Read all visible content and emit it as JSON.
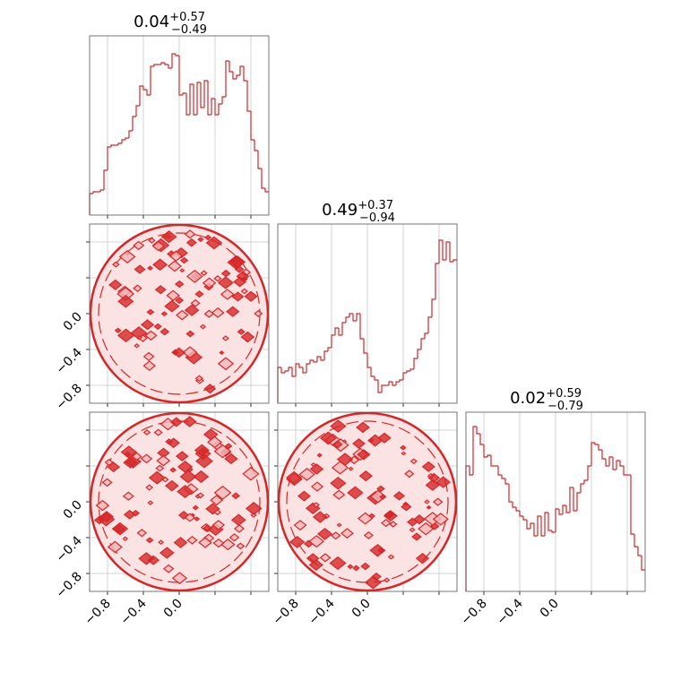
{
  "chart_data": [
    {
      "type": "histogram",
      "title": "0.04",
      "title_upper": "+0.57",
      "title_lower": "−0.49",
      "color": "#d62728",
      "bins": [
        -1,
        -0.96,
        -0.92,
        -0.88,
        -0.84,
        -0.8,
        -0.76,
        -0.72,
        -0.68,
        -0.64,
        -0.6,
        -0.56,
        -0.52,
        -0.48,
        -0.44,
        -0.4,
        -0.36,
        -0.32,
        -0.28,
        -0.24,
        -0.2,
        -0.16,
        -0.12,
        -0.08,
        -0.04,
        0,
        0.04,
        0.08,
        0.12,
        0.16,
        0.2,
        0.24,
        0.28,
        0.32,
        0.36,
        0.4,
        0.44,
        0.48,
        0.52,
        0.56,
        0.6,
        0.64,
        0.68,
        0.72,
        0.76,
        0.8,
        0.84,
        0.88,
        0.92,
        0.96,
        1
      ],
      "values": [
        0.12,
        0.13,
        0.13,
        0.14,
        0.25,
        0.38,
        0.39,
        0.39,
        0.4,
        0.42,
        0.43,
        0.47,
        0.55,
        0.61,
        0.72,
        0.7,
        0.67,
        0.83,
        0.84,
        0.84,
        0.85,
        0.84,
        0.82,
        0.9,
        0.89,
        0.67,
        0.68,
        0.56,
        0.73,
        0.56,
        0.74,
        0.6,
        0.75,
        0.56,
        0.65,
        0.56,
        0.62,
        0.66,
        0.86,
        0.8,
        0.76,
        0.78,
        0.83,
        0.75,
        0.58,
        0.42,
        0.36,
        0.26,
        0.15,
        0.13
      ],
      "xlim": [
        -1,
        1
      ],
      "ylim": [
        0,
        1
      ],
      "xticks": [
        -0.8,
        -0.4,
        0,
        0.4,
        0.8
      ],
      "grid": true
    },
    {
      "type": "contour",
      "color": "#d62728",
      "xlim": [
        -1,
        1
      ],
      "ylim": [
        -1,
        1
      ],
      "xticks": [
        -0.8,
        -0.4,
        0,
        0.4,
        0.8
      ],
      "yticks": [
        {
          "value": -0.8,
          "label": "−0.8"
        },
        {
          "value": -0.4,
          "label": "−0.4"
        },
        {
          "value": 0,
          "label": "0.0"
        },
        0.4,
        0.8
      ],
      "grid": true
    },
    {
      "type": "histogram",
      "title": "0.49",
      "title_upper": "+0.37",
      "title_lower": "−0.94",
      "color": "#d62728",
      "bins": [
        -1,
        -0.96,
        -0.92,
        -0.88,
        -0.84,
        -0.8,
        -0.76,
        -0.72,
        -0.68,
        -0.64,
        -0.6,
        -0.56,
        -0.52,
        -0.48,
        -0.44,
        -0.4,
        -0.36,
        -0.32,
        -0.28,
        -0.24,
        -0.2,
        -0.16,
        -0.12,
        -0.08,
        -0.04,
        0,
        0.04,
        0.08,
        0.12,
        0.16,
        0.2,
        0.24,
        0.28,
        0.32,
        0.36,
        0.4,
        0.44,
        0.48,
        0.52,
        0.56,
        0.6,
        0.64,
        0.68,
        0.72,
        0.76,
        0.8,
        0.84,
        0.88,
        0.92,
        0.96,
        1
      ],
      "values": [
        0.2,
        0.17,
        0.18,
        0.2,
        0.15,
        0.22,
        0.2,
        0.17,
        0.22,
        0.24,
        0.23,
        0.26,
        0.24,
        0.29,
        0.31,
        0.38,
        0.42,
        0.38,
        0.45,
        0.48,
        0.5,
        0.46,
        0.5,
        0.36,
        0.28,
        0.2,
        0.15,
        0.13,
        0.06,
        0.1,
        0.1,
        0.12,
        0.1,
        0.12,
        0.13,
        0.17,
        0.18,
        0.19,
        0.25,
        0.3,
        0.36,
        0.39,
        0.48,
        0.58,
        0.78,
        0.91,
        0.8,
        0.9,
        0.79,
        0.8
      ],
      "xlim": [
        -1,
        1
      ],
      "ylim": [
        0,
        1
      ],
      "xticks": [
        -0.8,
        -0.4,
        0,
        0.4,
        0.8
      ],
      "grid": true
    },
    {
      "type": "contour",
      "color": "#d62728",
      "xlim": [
        -1,
        1
      ],
      "ylim": [
        -1,
        1
      ],
      "xticks": [
        {
          "value": -0.8,
          "label": "−0.8"
        },
        {
          "value": -0.4,
          "label": "−0.4"
        },
        {
          "value": 0,
          "label": "0.0"
        },
        0.4,
        0.8
      ],
      "yticks": [
        {
          "value": -0.8,
          "label": "−0.8"
        },
        {
          "value": -0.4,
          "label": "−0.4"
        },
        {
          "value": 0,
          "label": "0.0"
        },
        0.4,
        0.8
      ],
      "grid": true
    },
    {
      "type": "contour",
      "color": "#d62728",
      "xlim": [
        -1,
        1
      ],
      "ylim": [
        -1,
        1
      ],
      "xticks": [
        {
          "value": -0.8,
          "label": "−0.8"
        },
        {
          "value": -0.4,
          "label": "−0.4"
        },
        {
          "value": 0,
          "label": "0.0"
        },
        0.4,
        0.8
      ],
      "yticks": [
        -0.8,
        -0.4,
        0,
        0.4,
        0.8
      ],
      "grid": true
    },
    {
      "type": "histogram",
      "title": "0.02",
      "title_upper": "+0.59",
      "title_lower": "−0.79",
      "color": "#d62728",
      "bins": [
        -1,
        -0.96,
        -0.92,
        -0.88,
        -0.84,
        -0.8,
        -0.76,
        -0.72,
        -0.68,
        -0.64,
        -0.6,
        -0.56,
        -0.52,
        -0.48,
        -0.44,
        -0.4,
        -0.36,
        -0.32,
        -0.28,
        -0.24,
        -0.2,
        -0.16,
        -0.12,
        -0.08,
        -0.04,
        0,
        0.04,
        0.08,
        0.12,
        0.16,
        0.2,
        0.24,
        0.28,
        0.32,
        0.36,
        0.4,
        0.44,
        0.48,
        0.52,
        0.56,
        0.6,
        0.64,
        0.68,
        0.72,
        0.76,
        0.8,
        0.84,
        0.88,
        0.92,
        0.96,
        1
      ],
      "values": [
        0.7,
        0.65,
        0.92,
        0.88,
        0.82,
        0.75,
        0.76,
        0.7,
        0.7,
        0.65,
        0.63,
        0.6,
        0.5,
        0.47,
        0.45,
        0.42,
        0.4,
        0.35,
        0.38,
        0.31,
        0.42,
        0.31,
        0.44,
        0.34,
        0.33,
        0.46,
        0.43,
        0.48,
        0.44,
        0.58,
        0.45,
        0.55,
        0.6,
        0.62,
        0.7,
        0.83,
        0.82,
        0.79,
        0.74,
        0.7,
        0.75,
        0.68,
        0.73,
        0.7,
        0.65,
        0.65,
        0.32,
        0.25,
        0.2,
        0.12
      ],
      "xlim": [
        -1,
        1
      ],
      "ylim": [
        0,
        1
      ],
      "xticks": [
        {
          "value": -0.8,
          "label": "−0.8"
        },
        {
          "value": -0.4,
          "label": "−0.4"
        },
        {
          "value": 0,
          "label": "0.0"
        },
        0.4,
        0.8
      ],
      "grid": true
    }
  ]
}
